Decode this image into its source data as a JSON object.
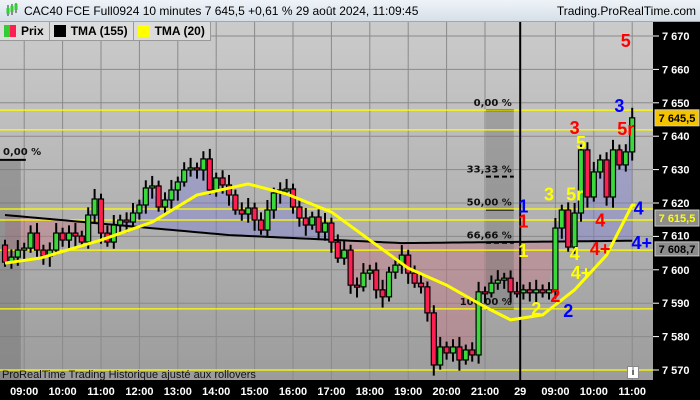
{
  "header": {
    "title": "CAC40 FCE Full0924 10 minutes 7 645,5 +0,61 % 29 août 2024, 11:09:45",
    "site": "Trading.ProRealTime.com",
    "icon": "candlestick-icon"
  },
  "legend": [
    {
      "label": "Prix",
      "colors": [
        "#33cc33",
        "#ff1e50"
      ]
    },
    {
      "label": "TMA (155)",
      "colors": [
        "#000000"
      ]
    },
    {
      "label": "TMA (20)",
      "colors": [
        "#ffff00"
      ]
    }
  ],
  "footnote": "ProRealTime Trading Historique ajusté aux rollovers",
  "info_icon": "i",
  "chart_data": {
    "type": "candlestick",
    "instrument": "CAC40 FCE Full0924",
    "timeframe": "10 minutes",
    "ylim": [
      7566,
      7674
    ],
    "yticks": [
      "7 570",
      "7 580",
      "7 590",
      "7 600",
      "7 610",
      "7 620",
      "7 630",
      "7 640",
      "7 650",
      "7 660",
      "7 670"
    ],
    "ytick_values": [
      7570,
      7580,
      7590,
      7600,
      7610,
      7620,
      7630,
      7640,
      7650,
      7660,
      7670
    ],
    "xticks": [
      {
        "label": "09:00",
        "bar": 3
      },
      {
        "label": "10:00",
        "bar": 9
      },
      {
        "label": "11:00",
        "bar": 15
      },
      {
        "label": "12:00",
        "bar": 21
      },
      {
        "label": "13:00",
        "bar": 27
      },
      {
        "label": "14:00",
        "bar": 33
      },
      {
        "label": "15:00",
        "bar": 39
      },
      {
        "label": "16:00",
        "bar": 45
      },
      {
        "label": "17:00",
        "bar": 51
      },
      {
        "label": "18:00",
        "bar": 57
      },
      {
        "label": "19:00",
        "bar": 63
      },
      {
        "label": "20:00",
        "bar": 69
      },
      {
        "label": "21:00",
        "bar": 75
      },
      {
        "label": "29",
        "bar": 80.5
      },
      {
        "label": "09:00",
        "bar": 86
      },
      {
        "label": "10:00",
        "bar": 92
      },
      {
        "label": "11:00",
        "bar": 98
      }
    ],
    "day_separator_bar": 80.5,
    "first_open": 7607.4,
    "closes": [
      7602.3,
      7603.8,
      7605.9,
      7606.5,
      7611,
      7605.9,
      7604.1,
      7605.9,
      7611,
      7608.9,
      7611,
      7610.1,
      7608.3,
      7616.4,
      7621.2,
      7611,
      7608.3,
      7613.4,
      7614.9,
      7614.3,
      7617,
      7619.4,
      7624.5,
      7625.1,
      7618.8,
      7620.9,
      7623.9,
      7626.3,
      7629.9,
      7630.5,
      7629.9,
      7633.2,
      7623.9,
      7627.5,
      7625.4,
      7622.4,
      7617.9,
      7616.7,
      7618.5,
      7614.9,
      7611.9,
      7617.9,
      7623,
      7623.9,
      7624.2,
      7618.8,
      7615.5,
      7613.4,
      7615.8,
      7611.3,
      7614,
      7608.3,
      7603.5,
      7605.9,
      7595.4,
      7594.9,
      7599,
      7599.9,
      7594,
      7591.9,
      7599.3,
      7601.4,
      7604.4,
      7599,
      7596,
      7594.9,
      7587.1,
      7571.5,
      7576.9,
      7575.1,
      7576.9,
      7573,
      7576,
      7574.5,
      7593.4,
      7593.1,
      7596,
      7596.9,
      7597.5,
      7593.4,
      7593.1,
      7594,
      7593.1,
      7594,
      7593.1,
      7594,
      7612.5,
      7617.9,
      7606.8,
      7617,
      7635.9,
      7621.8,
      7629.3,
      7632.9,
      7621.8,
      7635.9,
      7631.4,
      7635.3,
      7645.5
    ],
    "tma20": [
      [
        0,
        7602
      ],
      [
        5.5,
        7603.5
      ],
      [
        15,
        7608.9
      ],
      [
        23,
        7614.3
      ],
      [
        30,
        7622.4
      ],
      [
        38,
        7625.7
      ],
      [
        44,
        7622.7
      ],
      [
        51,
        7617.3
      ],
      [
        57,
        7608.9
      ],
      [
        63,
        7600.5
      ],
      [
        69,
        7595.4
      ],
      [
        75,
        7588.9
      ],
      [
        79,
        7585
      ],
      [
        84,
        7586.5
      ],
      [
        89,
        7594
      ],
      [
        94,
        7604.4
      ],
      [
        98,
        7619.4
      ]
    ],
    "tma155": [
      [
        0,
        7616.4
      ],
      [
        35,
        7610.4
      ],
      [
        62,
        7608
      ],
      [
        98,
        7608.7
      ]
    ],
    "horizontal_lines": [
      7647.8,
      7641.9,
      7618.2,
      7614.9,
      7605.9,
      7588.3,
      7570
    ],
    "price_badges": [
      {
        "label": "7 645,5",
        "bg": "#f5c400",
        "fg": "#000000"
      },
      {
        "label": "7 615,5",
        "bg": "#8c8c8c",
        "fg": "#ffff00"
      },
      {
        "label": "7 608,7",
        "bg": "#8c8c8c",
        "fg": "#000000"
      }
    ],
    "badge_values": [
      7645.5,
      7615.5,
      7608.7
    ],
    "fibo_left": {
      "label": "0,00 %",
      "price": 7632.9,
      "bar_from": -1,
      "bar_to": 2
    },
    "fibo": {
      "bar_from": 75,
      "bar_to": 79.5,
      "levels": [
        {
          "label": "0,00 %",
          "price": 7647.8
        },
        {
          "label": "33,33 %",
          "price": 7627.9
        },
        {
          "label": "50,00 %",
          "price": 7618.0
        },
        {
          "label": "66,66 %",
          "price": 7608.1
        },
        {
          "label": "100,00 %",
          "price": 7588.3
        }
      ]
    },
    "wave_labels": [
      {
        "t": "5",
        "c": "#ff0000",
        "bar": 97,
        "price": 7668.8
      },
      {
        "t": "3",
        "c": "#0000ff",
        "bar": 96,
        "price": 7649.3
      },
      {
        "t": "5r",
        "c": "#ff0000",
        "bar": 97,
        "price": 7642.4
      },
      {
        "t": "3",
        "c": "#ff0000",
        "bar": 89,
        "price": 7642.4
      },
      {
        "t": "5",
        "c": "#ffff00",
        "bar": 90,
        "price": 7638.2
      },
      {
        "t": "3",
        "c": "#ffff00",
        "bar": 85,
        "price": 7622.9
      },
      {
        "t": "5r",
        "c": "#ffff00",
        "bar": 89,
        "price": 7622.9
      },
      {
        "t": "1",
        "c": "#0000ff",
        "bar": 81,
        "price": 7618.4
      },
      {
        "t": "1",
        "c": "#ff0000",
        "bar": 81,
        "price": 7614.8
      },
      {
        "t": "4",
        "c": "#0000ff",
        "bar": 99,
        "price": 7618.7
      },
      {
        "t": "4",
        "c": "#ff0000",
        "bar": 93,
        "price": 7615.1
      },
      {
        "t": "1",
        "c": "#ffff00",
        "bar": 81,
        "price": 7605.9
      },
      {
        "t": "4+",
        "c": "#ff0000",
        "bar": 93,
        "price": 7606.5
      },
      {
        "t": "4+",
        "c": "#0000ff",
        "bar": 99.5,
        "price": 7608.3
      },
      {
        "t": "4",
        "c": "#ffff00",
        "bar": 89,
        "price": 7605
      },
      {
        "t": "4+",
        "c": "#ffff00",
        "bar": 90,
        "price": 7599.3
      },
      {
        "t": "2",
        "c": "#ffff00",
        "bar": 83,
        "price": 7588.6
      },
      {
        "t": "2",
        "c": "#ff0000",
        "bar": 86,
        "price": 7588.6
      },
      {
        "t": "2",
        "c": "#0000ff",
        "bar": 88,
        "price": 7588
      }
    ],
    "colors": {
      "up": "#3ad83a",
      "down": "#ff1e50",
      "tma20": "#ffff00",
      "tma155": "#000000",
      "hline": "#ffff00"
    }
  }
}
